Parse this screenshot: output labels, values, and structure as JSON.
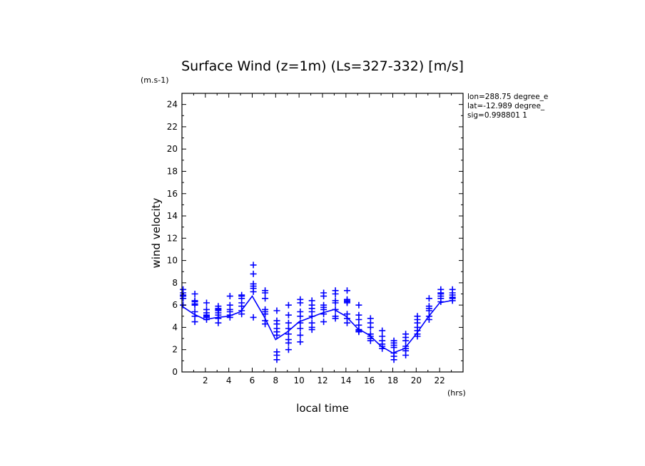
{
  "chart_data": {
    "type": "scatter",
    "title": "Surface Wind (z=1m) (Ls=327-332) [m/s]",
    "yunit": "(m.s-1)",
    "ylabel": "wind velocity",
    "xlabel": "local time",
    "xunit": "(hrs)",
    "info": [
      "lon=288.75 degree_e",
      "lat=-12.989 degree_",
      "sig=0.998801 1"
    ],
    "xlim": [
      0,
      24
    ],
    "ylim": [
      0,
      25
    ],
    "xticks": [
      2,
      4,
      6,
      8,
      10,
      12,
      14,
      16,
      18,
      20,
      22
    ],
    "yticks": [
      0,
      2,
      4,
      6,
      8,
      10,
      12,
      14,
      16,
      18,
      20,
      22,
      24
    ],
    "grid": false,
    "color": "#0000ff",
    "mean_line": {
      "x": [
        0,
        1,
        2,
        3,
        4,
        5,
        6,
        7,
        8,
        9,
        10,
        11,
        12,
        13,
        14,
        15,
        16,
        17,
        18,
        19,
        20,
        21,
        22,
        23
      ],
      "y": [
        5.9,
        5.2,
        4.7,
        4.9,
        5.0,
        5.4,
        6.8,
        5.0,
        2.9,
        3.6,
        4.5,
        4.9,
        5.3,
        5.6,
        5.0,
        3.9,
        3.3,
        2.3,
        1.7,
        2.1,
        3.4,
        4.9,
        6.2,
        6.4
      ]
    },
    "scatter": [
      {
        "x": 0.1,
        "y": [
          7.4,
          7.1,
          6.9,
          6.8,
          6.6,
          6.0
        ]
      },
      {
        "x": 1.1,
        "y": [
          7.0,
          6.4,
          6.3,
          6.1,
          6.0,
          5.4,
          5.0,
          4.5
        ]
      },
      {
        "x": 2.1,
        "y": [
          6.2,
          5.6,
          5.3,
          5.1,
          5.0,
          4.9,
          4.7
        ]
      },
      {
        "x": 3.1,
        "y": [
          5.9,
          5.7,
          5.6,
          5.5,
          5.3,
          5.1,
          4.8,
          4.4
        ]
      },
      {
        "x": 4.1,
        "y": [
          6.8,
          6.0,
          5.6,
          5.4,
          5.1,
          4.9
        ]
      },
      {
        "x": 5.1,
        "y": [
          6.9,
          6.8,
          6.6,
          6.2,
          5.9,
          5.5,
          5.2
        ]
      },
      {
        "x": 6.1,
        "y": [
          9.6,
          8.8,
          7.9,
          7.7,
          7.5,
          7.2,
          4.9
        ]
      },
      {
        "x": 7.1,
        "y": [
          7.3,
          7.1,
          6.6,
          5.6,
          5.4,
          5.2,
          4.6,
          4.3
        ]
      },
      {
        "x": 8.1,
        "y": [
          5.5,
          4.6,
          4.3,
          3.9,
          3.6,
          3.3,
          1.8,
          1.5,
          1.1
        ]
      },
      {
        "x": 9.1,
        "y": [
          6.0,
          5.1,
          4.4,
          3.9,
          3.4,
          2.9,
          2.6,
          2.0
        ]
      },
      {
        "x": 10.1,
        "y": [
          6.5,
          6.2,
          5.4,
          5.0,
          4.4,
          3.9,
          3.3,
          2.7
        ]
      },
      {
        "x": 11.1,
        "y": [
          6.4,
          6.0,
          5.7,
          5.4,
          5.0,
          4.4,
          4.0,
          3.8
        ]
      },
      {
        "x": 12.1,
        "y": [
          7.1,
          6.8,
          6.0,
          5.8,
          5.6,
          5.2,
          4.5
        ]
      },
      {
        "x": 13.1,
        "y": [
          7.3,
          7.0,
          6.4,
          6.2,
          5.6,
          5.0,
          4.8
        ]
      },
      {
        "x": 14.1,
        "y": [
          7.3,
          6.5,
          6.4,
          6.3,
          6.2,
          5.2,
          4.8,
          4.4
        ]
      },
      {
        "x": 15.1,
        "y": [
          6.0,
          5.1,
          4.7,
          4.2,
          3.8,
          3.7,
          3.6
        ]
      },
      {
        "x": 16.1,
        "y": [
          4.8,
          4.4,
          4.0,
          3.4,
          3.2,
          3.0,
          2.8
        ]
      },
      {
        "x": 17.1,
        "y": [
          3.7,
          3.2,
          2.8,
          2.5,
          2.3,
          2.1
        ]
      },
      {
        "x": 18.1,
        "y": [
          2.8,
          2.6,
          2.4,
          2.2,
          1.7,
          1.4,
          1.1
        ]
      },
      {
        "x": 19.1,
        "y": [
          3.4,
          3.1,
          2.8,
          2.3,
          2.1,
          1.9,
          1.5
        ]
      },
      {
        "x": 20.1,
        "y": [
          5.0,
          4.7,
          4.4,
          4.0,
          3.7,
          3.4,
          3.2
        ]
      },
      {
        "x": 21.1,
        "y": [
          6.6,
          5.9,
          5.7,
          5.5,
          5.0,
          4.7
        ]
      },
      {
        "x": 22.1,
        "y": [
          7.4,
          7.1,
          7.0,
          6.8,
          6.6,
          6.3
        ]
      },
      {
        "x": 23.1,
        "y": [
          7.4,
          7.1,
          6.9,
          6.7,
          6.6,
          6.4
        ]
      }
    ]
  }
}
